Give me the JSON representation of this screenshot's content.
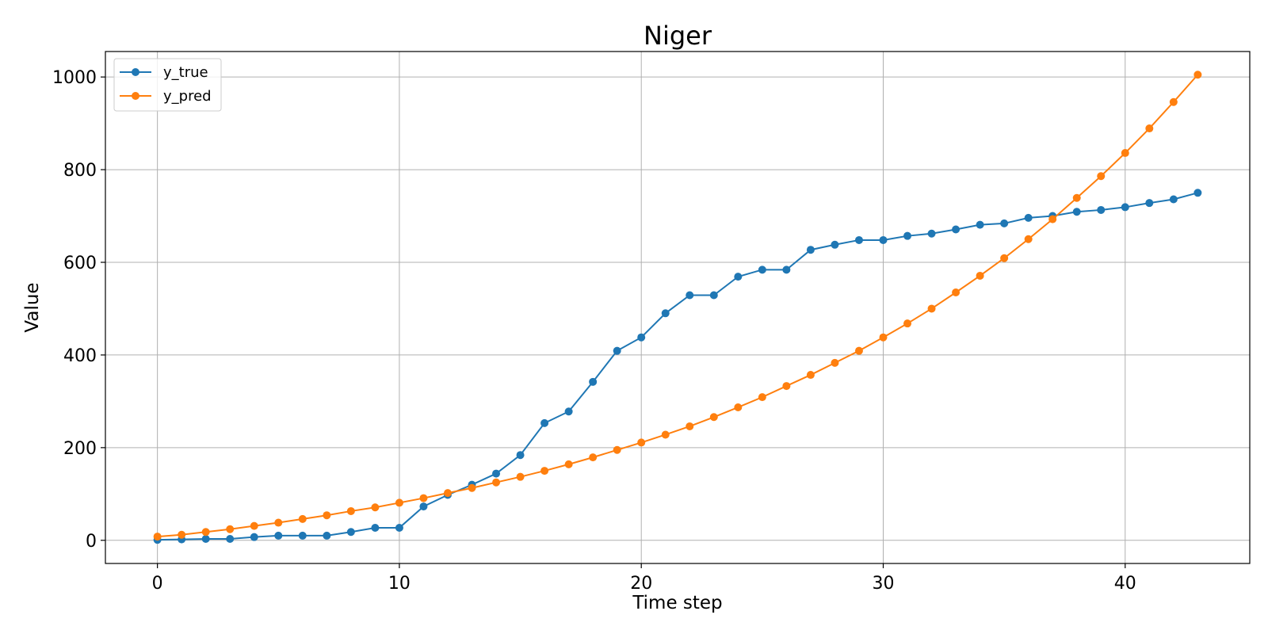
{
  "chart_data": {
    "type": "line",
    "title": "Niger",
    "xlabel": "Time step",
    "ylabel": "Value",
    "xlim": [
      -2.15,
      45.15
    ],
    "ylim": [
      -50,
      1055
    ],
    "x_ticks": [
      0,
      10,
      20,
      30,
      40
    ],
    "y_ticks": [
      0,
      200,
      400,
      600,
      800,
      1000
    ],
    "grid": true,
    "legend_position": "top-left",
    "x": [
      0,
      1,
      2,
      3,
      4,
      5,
      6,
      7,
      8,
      9,
      10,
      11,
      12,
      13,
      14,
      15,
      16,
      17,
      18,
      19,
      20,
      21,
      22,
      23,
      24,
      25,
      26,
      27,
      28,
      29,
      30,
      31,
      32,
      33,
      34,
      35,
      36,
      37,
      38,
      39,
      40,
      41,
      42,
      43
    ],
    "series": [
      {
        "name": "y_true",
        "color": "#1f77b4",
        "values": [
          1,
          2,
          3,
          3,
          7,
          10,
          10,
          10,
          18,
          27,
          27,
          73,
          98,
          120,
          144,
          184,
          253,
          278,
          342,
          409,
          438,
          490,
          529,
          529,
          569,
          584,
          584,
          627,
          638,
          648,
          648,
          657,
          662,
          671,
          681,
          684,
          696,
          700,
          709,
          713,
          719,
          728,
          736,
          750
        ]
      },
      {
        "name": "y_pred",
        "color": "#ff7f0e",
        "values": [
          8,
          12,
          18,
          24,
          31,
          38,
          46,
          54,
          63,
          71,
          81,
          91,
          102,
          113,
          125,
          137,
          150,
          164,
          179,
          195,
          211,
          228,
          246,
          266,
          287,
          309,
          333,
          357,
          383,
          409,
          438,
          468,
          500,
          535,
          571,
          609,
          650,
          693,
          739,
          786,
          836,
          889,
          946,
          1005
        ]
      }
    ]
  }
}
